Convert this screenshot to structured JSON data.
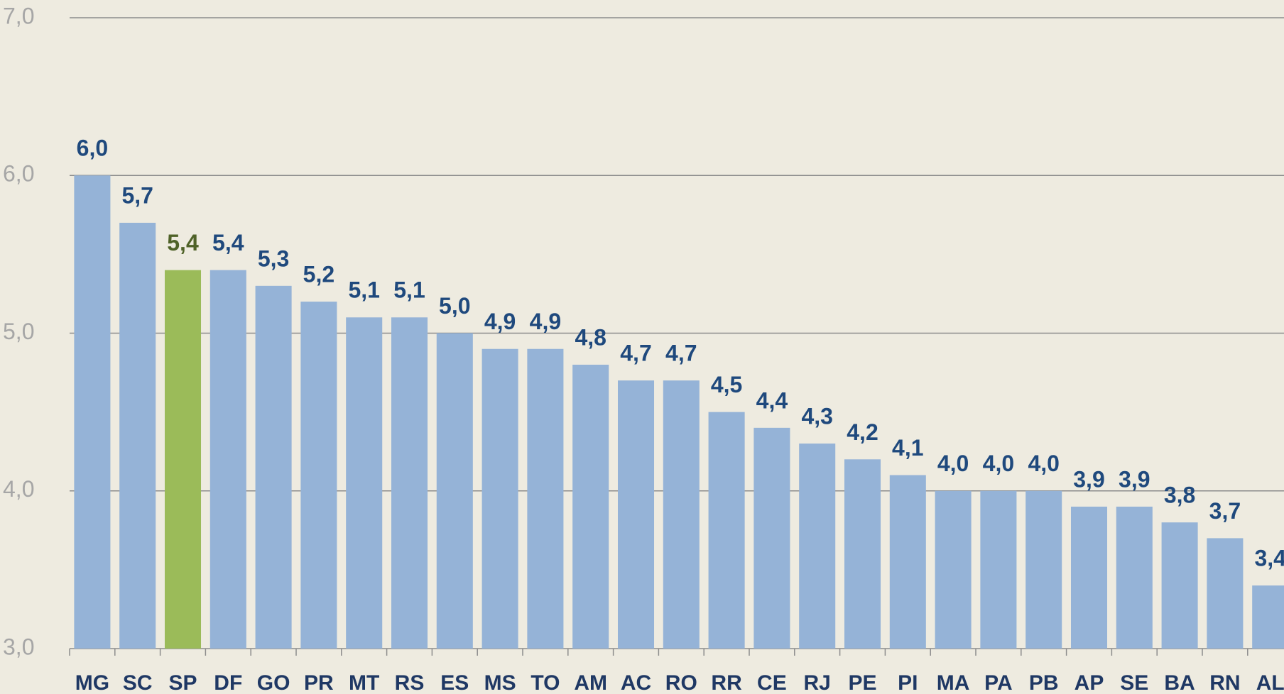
{
  "chart_data": {
    "type": "bar",
    "categories": [
      "MG",
      "SC",
      "SP",
      "DF",
      "GO",
      "PR",
      "MT",
      "RS",
      "ES",
      "MS",
      "TO",
      "AM",
      "AC",
      "RO",
      "RR",
      "CE",
      "RJ",
      "PE",
      "PI",
      "MA",
      "PA",
      "PB",
      "AP",
      "SE",
      "BA",
      "RN",
      "AL"
    ],
    "values": [
      6.0,
      5.7,
      5.4,
      5.4,
      5.3,
      5.2,
      5.1,
      5.1,
      5.0,
      4.9,
      4.9,
      4.8,
      4.7,
      4.7,
      4.5,
      4.4,
      4.3,
      4.2,
      4.1,
      4.0,
      4.0,
      4.0,
      3.9,
      3.9,
      3.8,
      3.7,
      3.4
    ],
    "value_labels": [
      "6,0",
      "5,7",
      "5,4",
      "5,4",
      "5,3",
      "5,2",
      "5,1",
      "5,1",
      "5,0",
      "4,9",
      "4,9",
      "4,8",
      "4,7",
      "4,7",
      "4,5",
      "4,4",
      "4,3",
      "4,2",
      "4,1",
      "4,0",
      "4,0",
      "4,0",
      "3,9",
      "3,9",
      "3,8",
      "3,7",
      "3,4"
    ],
    "colors": [
      "#95b3d7",
      "#95b3d7",
      "#9bbb59",
      "#95b3d7",
      "#95b3d7",
      "#95b3d7",
      "#95b3d7",
      "#95b3d7",
      "#95b3d7",
      "#95b3d7",
      "#95b3d7",
      "#95b3d7",
      "#95b3d7",
      "#95b3d7",
      "#95b3d7",
      "#95b3d7",
      "#95b3d7",
      "#95b3d7",
      "#95b3d7",
      "#95b3d7",
      "#95b3d7",
      "#95b3d7",
      "#95b3d7",
      "#95b3d7",
      "#95b3d7",
      "#95b3d7",
      "#95b3d7"
    ],
    "label_colors": [
      "#1f497d",
      "#1f497d",
      "#4f6228",
      "#1f497d",
      "#1f497d",
      "#1f497d",
      "#1f497d",
      "#1f497d",
      "#1f497d",
      "#1f497d",
      "#1f497d",
      "#1f497d",
      "#1f497d",
      "#1f497d",
      "#1f497d",
      "#1f497d",
      "#1f497d",
      "#1f497d",
      "#1f497d",
      "#1f497d",
      "#1f497d",
      "#1f497d",
      "#1f497d",
      "#1f497d",
      "#1f497d",
      "#1f497d",
      "#1f497d"
    ],
    "ylim": [
      3,
      7
    ],
    "yticks": [
      {
        "value": 3,
        "label": "3,0"
      },
      {
        "value": 4,
        "label": "4,0"
      },
      {
        "value": 5,
        "label": "5,0"
      },
      {
        "value": 6,
        "label": "6,0"
      },
      {
        "value": 7,
        "label": "7,0"
      }
    ],
    "grid": true
  }
}
